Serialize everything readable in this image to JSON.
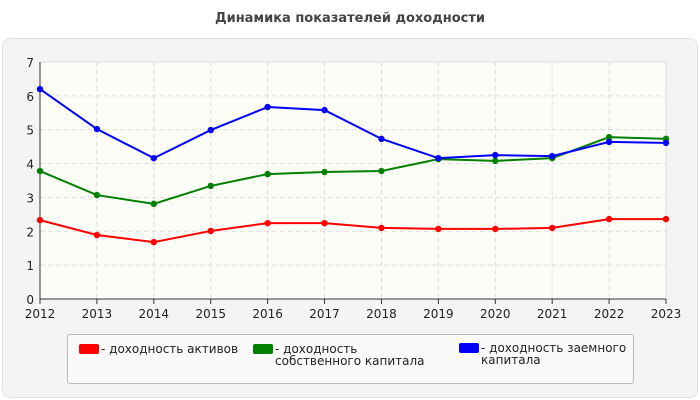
{
  "chart_data": {
    "type": "line",
    "title": "Динамика показателей доходности",
    "x": [
      2012,
      2013,
      2014,
      2015,
      2016,
      2017,
      2018,
      2019,
      2020,
      2021,
      2022,
      2023
    ],
    "ylim": [
      0,
      7
    ],
    "yticks": [
      0,
      1,
      2,
      3,
      4,
      5,
      6,
      7
    ],
    "grid": true,
    "legend_position": "bottom",
    "series": [
      {
        "name": "- доходность активов",
        "color": "#ff0000",
        "values": [
          2.33,
          1.89,
          1.68,
          2.01,
          2.24,
          2.24,
          2.1,
          2.07,
          2.07,
          2.1,
          2.36,
          2.36
        ]
      },
      {
        "name": "- доходность собственного капитала",
        "color": "#008000",
        "values": [
          3.78,
          3.07,
          2.81,
          3.34,
          3.69,
          3.75,
          3.78,
          4.13,
          4.08,
          4.16,
          4.78,
          4.73
        ]
      },
      {
        "name": "- доходность заемного капитала",
        "color": "#0000ff",
        "values": [
          6.2,
          5.02,
          4.16,
          4.99,
          5.67,
          5.58,
          4.73,
          4.16,
          4.25,
          4.22,
          4.64,
          4.61
        ]
      }
    ]
  }
}
